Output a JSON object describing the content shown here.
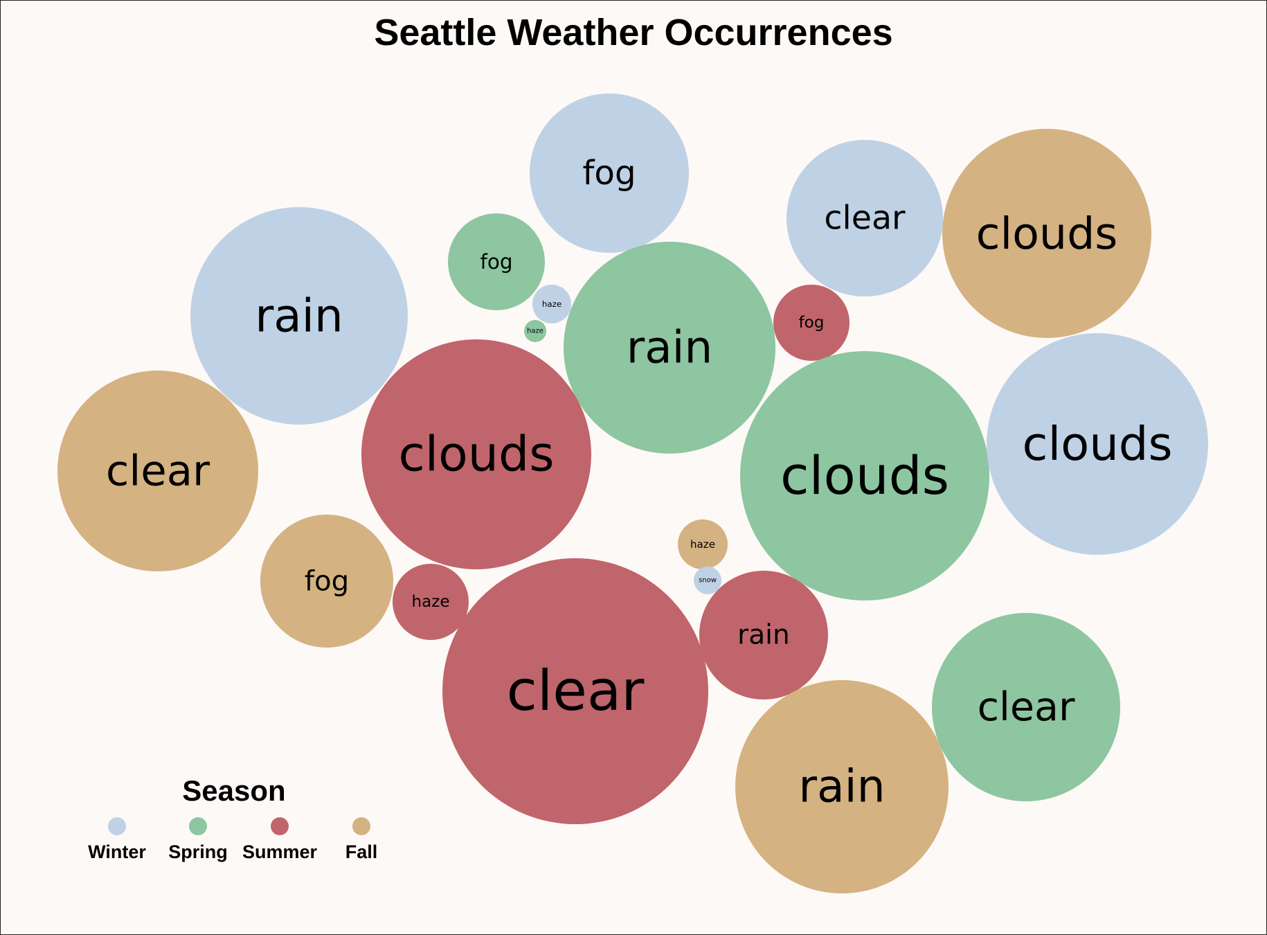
{
  "chart_data": {
    "type": "bubble",
    "title": "Seattle Weather Occurrences",
    "legend": {
      "title": "Season",
      "placement": "bottom-left",
      "entries": [
        {
          "name": "Winter",
          "color": "#bfd1e5"
        },
        {
          "name": "Spring",
          "color": "#8dc6a0"
        },
        {
          "name": "Summer",
          "color": "#c0656b"
        },
        {
          "name": "Fall",
          "color": "#d4b282"
        }
      ]
    },
    "bubbles": [
      {
        "label": "fog",
        "season": "Winter",
        "value": 16
      },
      {
        "label": "fog",
        "season": "Spring",
        "value": 6
      },
      {
        "label": "clear",
        "season": "Winter",
        "value": 16
      },
      {
        "label": "clouds",
        "season": "Fall",
        "value": 27
      },
      {
        "label": "rain",
        "season": "Winter",
        "value": 30
      },
      {
        "label": "haze",
        "season": "Winter",
        "value": 1
      },
      {
        "label": "haze",
        "season": "Spring",
        "value": 0.3
      },
      {
        "label": "rain",
        "season": "Spring",
        "value": 28
      },
      {
        "label": "fog",
        "season": "Summer",
        "value": 3
      },
      {
        "label": "clear",
        "season": "Fall",
        "value": 25
      },
      {
        "label": "clouds",
        "season": "Summer",
        "value": 33
      },
      {
        "label": "clouds",
        "season": "Spring",
        "value": 38
      },
      {
        "label": "clouds",
        "season": "Winter",
        "value": 30
      },
      {
        "label": "fog",
        "season": "Fall",
        "value": 11
      },
      {
        "label": "haze",
        "season": "Summer",
        "value": 3
      },
      {
        "label": "haze",
        "season": "Fall",
        "value": 1.4
      },
      {
        "label": "snow",
        "season": "Winter",
        "value": 0.5
      },
      {
        "label": "rain",
        "season": "Summer",
        "value": 10
      },
      {
        "label": "clear",
        "season": "Summer",
        "value": 43
      },
      {
        "label": "clear",
        "season": "Spring",
        "value": 22
      },
      {
        "label": "rain",
        "season": "Fall",
        "value": 28
      }
    ]
  }
}
